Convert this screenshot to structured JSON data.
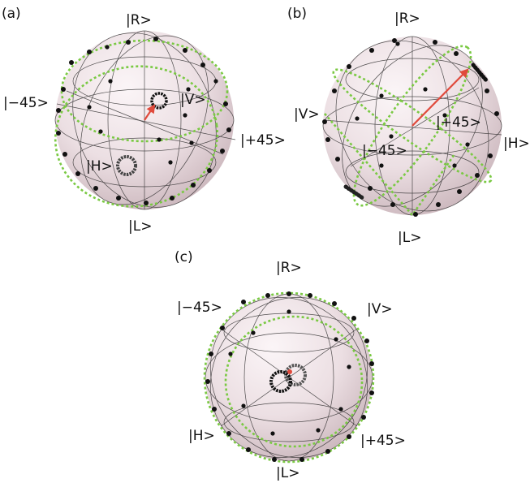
{
  "panels": [
    {
      "id": "a",
      "label": "(a)",
      "states": {
        "R": "|R>",
        "L": "|L>",
        "H": "|H>",
        "V": "|V>",
        "p45": "|+45>",
        "m45": "|−45>"
      }
    },
    {
      "id": "b",
      "label": "(b)",
      "states": {
        "R": "|R>",
        "L": "|L>",
        "H": "|H>",
        "V": "|V>",
        "p45": "|+45>",
        "m45": "|−45>"
      }
    },
    {
      "id": "c",
      "label": "(c)",
      "states": {
        "R": "|R>",
        "L": "|L>",
        "H": "|H>",
        "V": "|V>",
        "p45": "|+45>",
        "m45": "|−45>"
      }
    }
  ],
  "colors": {
    "sphere_light": "#fbf4f6",
    "sphere_dark": "#cfb9bf",
    "grid": "#1a1a1a",
    "dotted_curve": "#7ac943",
    "marker": "#111111",
    "arrow": "#e04a3c"
  }
}
